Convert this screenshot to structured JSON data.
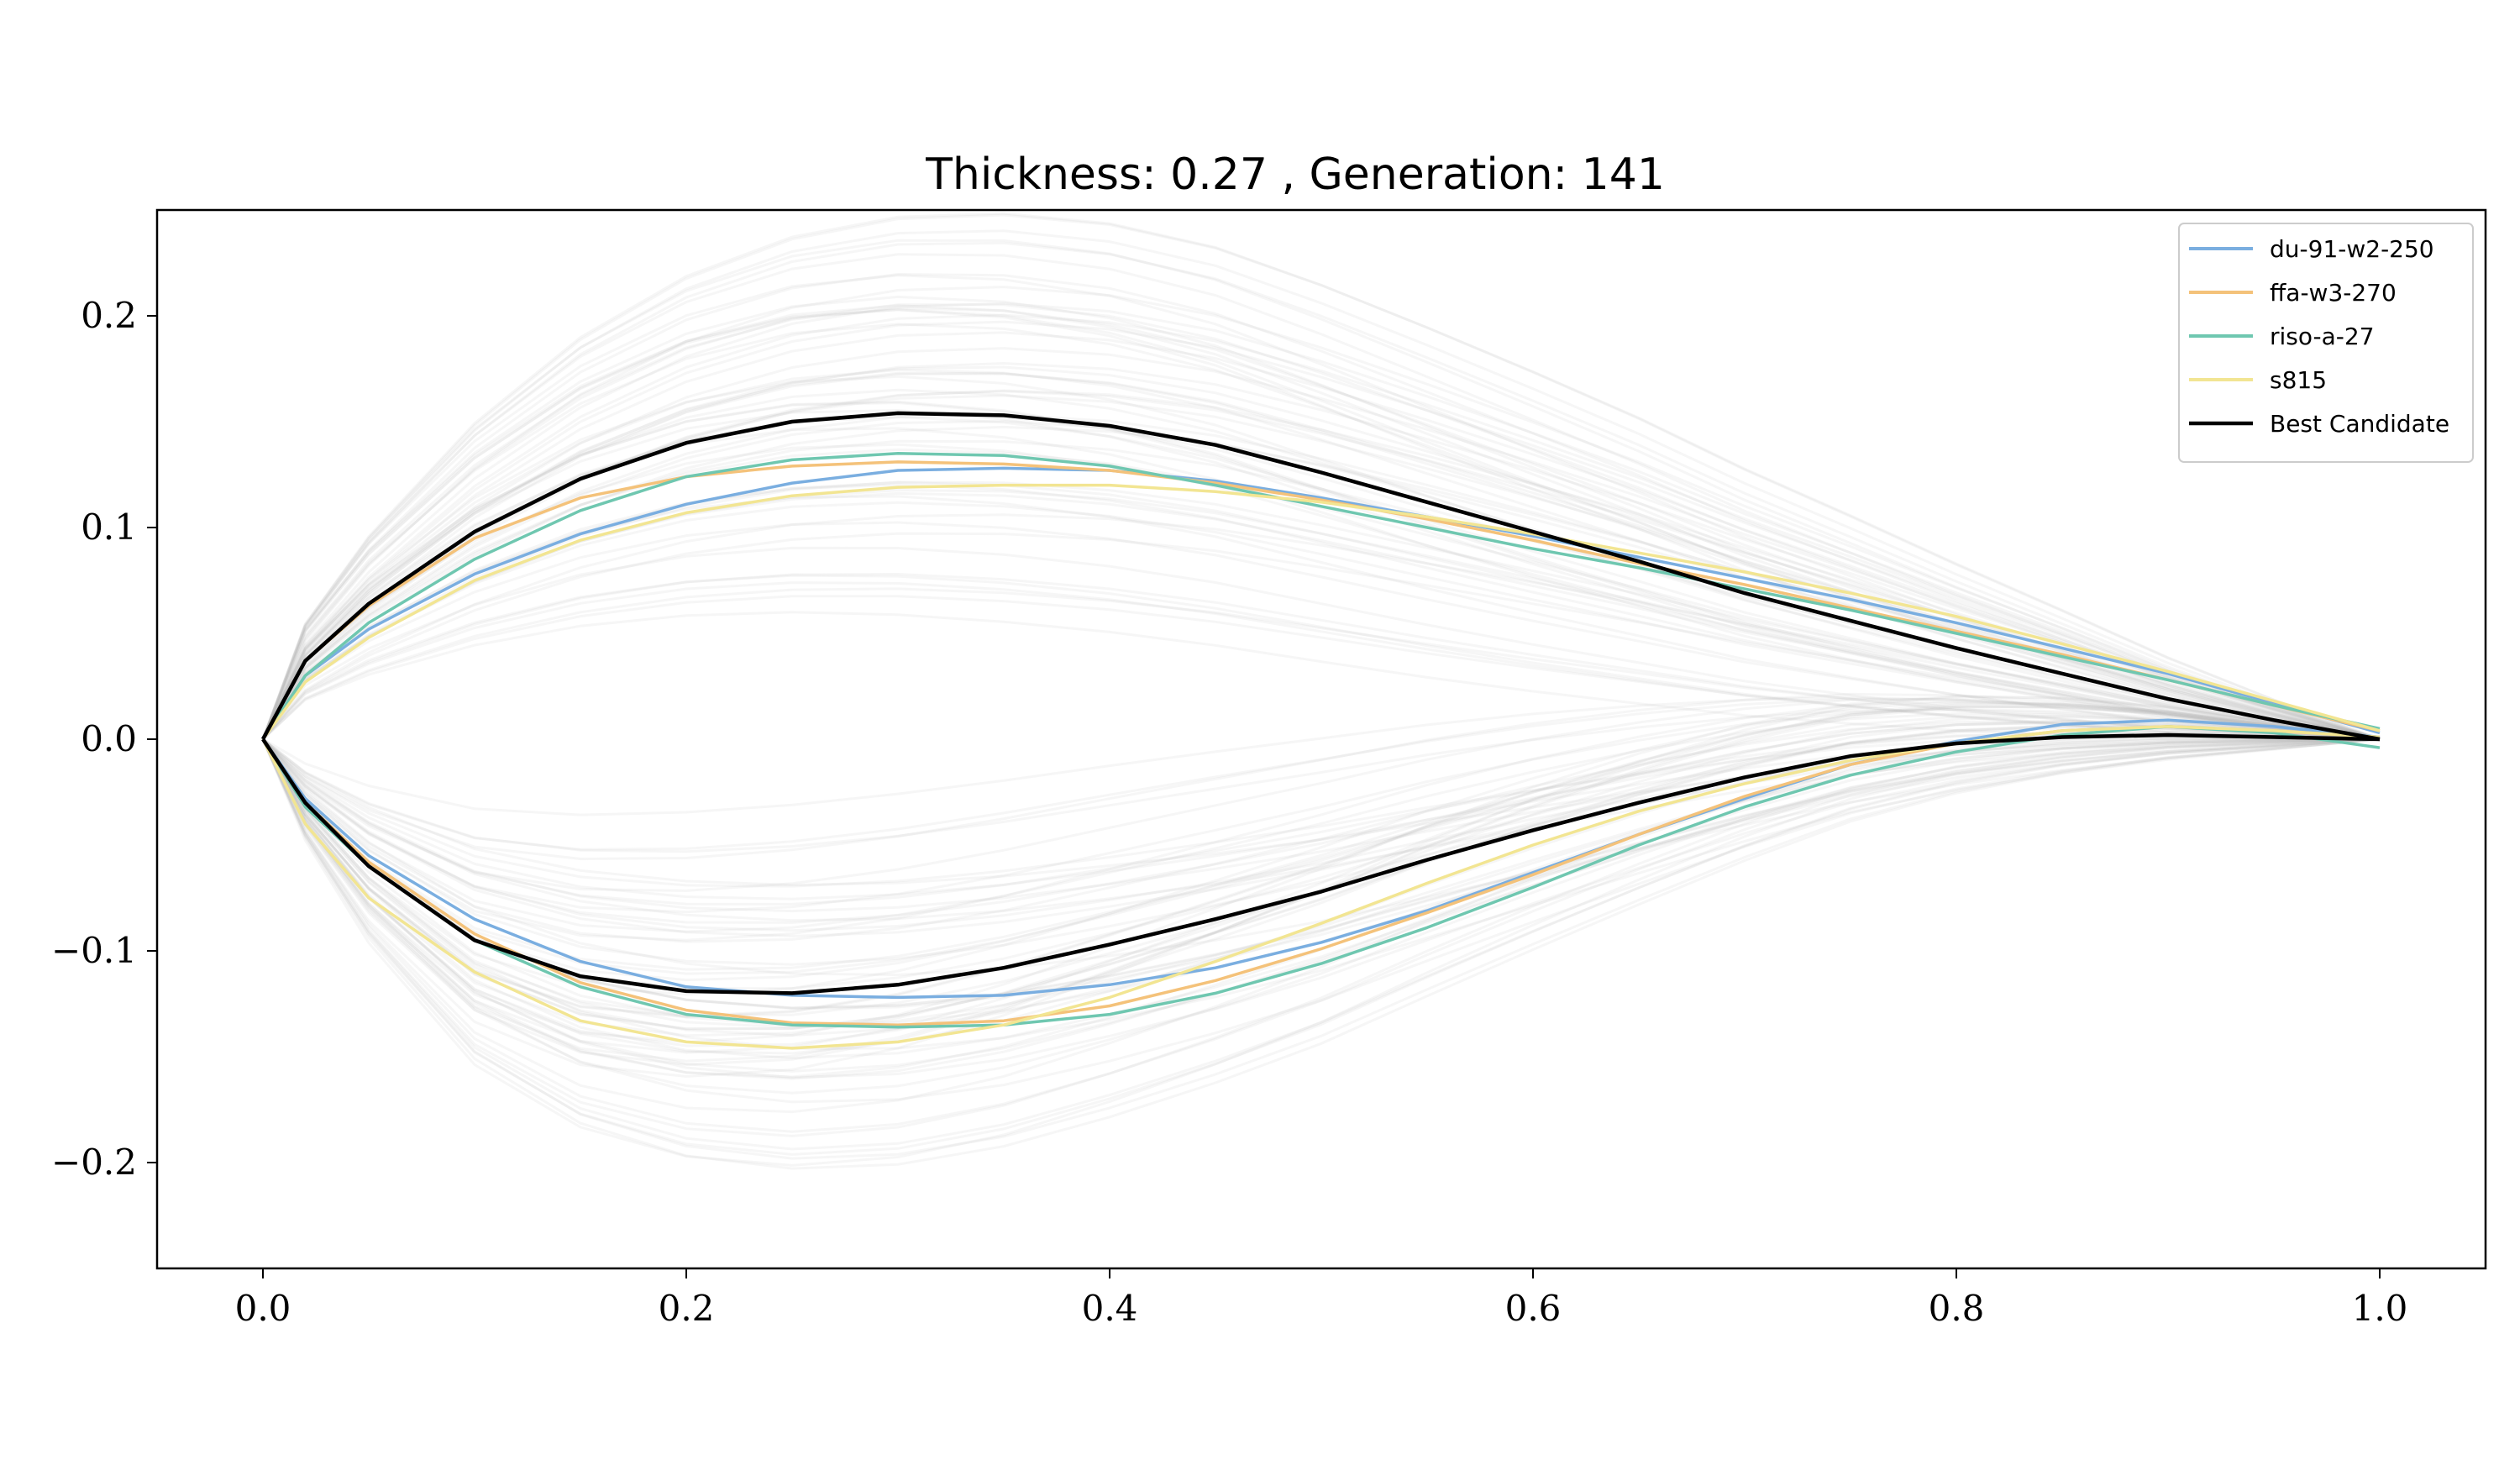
{
  "chart_data": {
    "type": "line",
    "title": "Thickness: 0.27 , Generation: 141",
    "xlabel": "",
    "ylabel": "",
    "xlim": [
      -0.05,
      1.05
    ],
    "ylim": [
      -0.25,
      0.25
    ],
    "xticks": [
      0.0,
      0.2,
      0.4,
      0.6,
      0.8,
      1.0
    ],
    "yticks": [
      -0.2,
      -0.1,
      0.0,
      0.1,
      0.2
    ],
    "xtick_labels": [
      "0.0",
      "0.2",
      "0.4",
      "0.6",
      "0.8",
      "1.0"
    ],
    "ytick_labels": [
      "−0.2",
      "−0.1",
      "0.0",
      "0.1",
      "0.2"
    ],
    "grid": false,
    "legend_position": "top-right",
    "series": [
      {
        "name": "du-91-w2-250",
        "color": "#7aaee0",
        "upper": [
          [
            0.0,
            0.0
          ],
          [
            0.02,
            0.03
          ],
          [
            0.05,
            0.052
          ],
          [
            0.1,
            0.078
          ],
          [
            0.15,
            0.097
          ],
          [
            0.2,
            0.111
          ],
          [
            0.25,
            0.121
          ],
          [
            0.3,
            0.127
          ],
          [
            0.35,
            0.128
          ],
          [
            0.4,
            0.127
          ],
          [
            0.45,
            0.122
          ],
          [
            0.5,
            0.114
          ],
          [
            0.55,
            0.105
          ],
          [
            0.6,
            0.096
          ],
          [
            0.65,
            0.086
          ],
          [
            0.7,
            0.076
          ],
          [
            0.75,
            0.066
          ],
          [
            0.8,
            0.055
          ],
          [
            0.85,
            0.043
          ],
          [
            0.9,
            0.031
          ],
          [
            0.95,
            0.017
          ],
          [
            1.0,
            0.003
          ]
        ],
        "lower": [
          [
            0.0,
            0.0
          ],
          [
            0.02,
            -0.028
          ],
          [
            0.05,
            -0.055
          ],
          [
            0.1,
            -0.085
          ],
          [
            0.15,
            -0.105
          ],
          [
            0.2,
            -0.117
          ],
          [
            0.25,
            -0.121
          ],
          [
            0.3,
            -0.122
          ],
          [
            0.35,
            -0.121
          ],
          [
            0.4,
            -0.116
          ],
          [
            0.45,
            -0.108
          ],
          [
            0.5,
            -0.096
          ],
          [
            0.55,
            -0.081
          ],
          [
            0.6,
            -0.063
          ],
          [
            0.65,
            -0.045
          ],
          [
            0.7,
            -0.028
          ],
          [
            0.75,
            -0.012
          ],
          [
            0.8,
            -0.001
          ],
          [
            0.85,
            0.007
          ],
          [
            0.9,
            0.009
          ],
          [
            0.95,
            0.006
          ],
          [
            1.0,
            0.001
          ]
        ]
      },
      {
        "name": "ffa-w3-270",
        "color": "#f4c27a",
        "upper": [
          [
            0.0,
            0.0
          ],
          [
            0.02,
            0.037
          ],
          [
            0.05,
            0.063
          ],
          [
            0.1,
            0.095
          ],
          [
            0.15,
            0.114
          ],
          [
            0.2,
            0.124
          ],
          [
            0.25,
            0.129
          ],
          [
            0.3,
            0.131
          ],
          [
            0.35,
            0.13
          ],
          [
            0.4,
            0.127
          ],
          [
            0.45,
            0.121
          ],
          [
            0.5,
            0.113
          ],
          [
            0.55,
            0.104
          ],
          [
            0.6,
            0.094
          ],
          [
            0.65,
            0.083
          ],
          [
            0.7,
            0.073
          ],
          [
            0.75,
            0.062
          ],
          [
            0.8,
            0.051
          ],
          [
            0.85,
            0.04
          ],
          [
            0.9,
            0.028
          ],
          [
            0.95,
            0.016
          ],
          [
            1.0,
            0.004
          ]
        ],
        "lower": [
          [
            0.0,
            0.0
          ],
          [
            0.02,
            -0.03
          ],
          [
            0.05,
            -0.058
          ],
          [
            0.1,
            -0.092
          ],
          [
            0.15,
            -0.115
          ],
          [
            0.2,
            -0.128
          ],
          [
            0.25,
            -0.134
          ],
          [
            0.3,
            -0.135
          ],
          [
            0.35,
            -0.133
          ],
          [
            0.4,
            -0.126
          ],
          [
            0.45,
            -0.114
          ],
          [
            0.5,
            -0.099
          ],
          [
            0.55,
            -0.082
          ],
          [
            0.6,
            -0.064
          ],
          [
            0.65,
            -0.045
          ],
          [
            0.7,
            -0.027
          ],
          [
            0.75,
            -0.012
          ],
          [
            0.8,
            -0.002
          ],
          [
            0.85,
            0.004
          ],
          [
            0.9,
            0.006
          ],
          [
            0.95,
            0.004
          ],
          [
            1.0,
            0.001
          ]
        ]
      },
      {
        "name": "riso-a-27",
        "color": "#6fc7b0",
        "upper": [
          [
            0.0,
            0.0
          ],
          [
            0.02,
            0.03
          ],
          [
            0.05,
            0.055
          ],
          [
            0.1,
            0.085
          ],
          [
            0.15,
            0.108
          ],
          [
            0.2,
            0.124
          ],
          [
            0.25,
            0.132
          ],
          [
            0.3,
            0.135
          ],
          [
            0.35,
            0.134
          ],
          [
            0.4,
            0.129
          ],
          [
            0.45,
            0.12
          ],
          [
            0.5,
            0.11
          ],
          [
            0.55,
            0.1
          ],
          [
            0.6,
            0.09
          ],
          [
            0.65,
            0.081
          ],
          [
            0.7,
            0.071
          ],
          [
            0.75,
            0.061
          ],
          [
            0.8,
            0.05
          ],
          [
            0.85,
            0.039
          ],
          [
            0.9,
            0.028
          ],
          [
            0.95,
            0.016
          ],
          [
            1.0,
            0.005
          ]
        ],
        "lower": [
          [
            0.0,
            0.0
          ],
          [
            0.02,
            -0.032
          ],
          [
            0.05,
            -0.06
          ],
          [
            0.1,
            -0.095
          ],
          [
            0.15,
            -0.117
          ],
          [
            0.2,
            -0.13
          ],
          [
            0.25,
            -0.135
          ],
          [
            0.3,
            -0.136
          ],
          [
            0.35,
            -0.135
          ],
          [
            0.4,
            -0.13
          ],
          [
            0.45,
            -0.12
          ],
          [
            0.5,
            -0.106
          ],
          [
            0.55,
            -0.089
          ],
          [
            0.6,
            -0.07
          ],
          [
            0.65,
            -0.05
          ],
          [
            0.7,
            -0.032
          ],
          [
            0.75,
            -0.017
          ],
          [
            0.8,
            -0.006
          ],
          [
            0.85,
            0.002
          ],
          [
            0.9,
            0.006
          ],
          [
            0.95,
            0.003
          ],
          [
            1.0,
            -0.004
          ]
        ]
      },
      {
        "name": "s815",
        "color": "#f2e592",
        "upper": [
          [
            0.0,
            0.0
          ],
          [
            0.02,
            0.027
          ],
          [
            0.05,
            0.048
          ],
          [
            0.1,
            0.075
          ],
          [
            0.15,
            0.094
          ],
          [
            0.2,
            0.107
          ],
          [
            0.25,
            0.115
          ],
          [
            0.3,
            0.119
          ],
          [
            0.35,
            0.12
          ],
          [
            0.4,
            0.12
          ],
          [
            0.45,
            0.117
          ],
          [
            0.5,
            0.112
          ],
          [
            0.55,
            0.105
          ],
          [
            0.6,
            0.097
          ],
          [
            0.65,
            0.088
          ],
          [
            0.7,
            0.079
          ],
          [
            0.75,
            0.069
          ],
          [
            0.8,
            0.058
          ],
          [
            0.85,
            0.045
          ],
          [
            0.9,
            0.032
          ],
          [
            0.95,
            0.018
          ],
          [
            1.0,
            0.004
          ]
        ],
        "lower": [
          [
            0.0,
            0.0
          ],
          [
            0.02,
            -0.04
          ],
          [
            0.05,
            -0.075
          ],
          [
            0.1,
            -0.11
          ],
          [
            0.15,
            -0.133
          ],
          [
            0.2,
            -0.143
          ],
          [
            0.25,
            -0.146
          ],
          [
            0.3,
            -0.143
          ],
          [
            0.35,
            -0.135
          ],
          [
            0.4,
            -0.122
          ],
          [
            0.45,
            -0.105
          ],
          [
            0.5,
            -0.087
          ],
          [
            0.55,
            -0.068
          ],
          [
            0.6,
            -0.05
          ],
          [
            0.65,
            -0.034
          ],
          [
            0.7,
            -0.021
          ],
          [
            0.75,
            -0.01
          ],
          [
            0.8,
            -0.002
          ],
          [
            0.85,
            0.004
          ],
          [
            0.9,
            0.006
          ],
          [
            0.95,
            0.004
          ],
          [
            1.0,
            0.001
          ]
        ]
      },
      {
        "name": "Best Candidate",
        "color": "#000000",
        "upper": [
          [
            0.0,
            0.0
          ],
          [
            0.02,
            0.037
          ],
          [
            0.05,
            0.064
          ],
          [
            0.1,
            0.098
          ],
          [
            0.15,
            0.123
          ],
          [
            0.2,
            0.14
          ],
          [
            0.25,
            0.15
          ],
          [
            0.3,
            0.154
          ],
          [
            0.35,
            0.153
          ],
          [
            0.4,
            0.148
          ],
          [
            0.45,
            0.139
          ],
          [
            0.5,
            0.126
          ],
          [
            0.55,
            0.112
          ],
          [
            0.6,
            0.098
          ],
          [
            0.65,
            0.084
          ],
          [
            0.7,
            0.069
          ],
          [
            0.75,
            0.056
          ],
          [
            0.8,
            0.043
          ],
          [
            0.85,
            0.031
          ],
          [
            0.9,
            0.019
          ],
          [
            0.95,
            0.009
          ],
          [
            1.0,
            0.0
          ]
        ],
        "lower": [
          [
            0.0,
            0.0
          ],
          [
            0.02,
            -0.03
          ],
          [
            0.05,
            -0.06
          ],
          [
            0.1,
            -0.095
          ],
          [
            0.15,
            -0.112
          ],
          [
            0.2,
            -0.119
          ],
          [
            0.25,
            -0.12
          ],
          [
            0.3,
            -0.116
          ],
          [
            0.35,
            -0.108
          ],
          [
            0.4,
            -0.097
          ],
          [
            0.45,
            -0.085
          ],
          [
            0.5,
            -0.072
          ],
          [
            0.55,
            -0.057
          ],
          [
            0.6,
            -0.043
          ],
          [
            0.65,
            -0.03
          ],
          [
            0.7,
            -0.018
          ],
          [
            0.75,
            -0.008
          ],
          [
            0.8,
            -0.002
          ],
          [
            0.85,
            0.001
          ],
          [
            0.9,
            0.002
          ],
          [
            0.95,
            0.001
          ],
          [
            1.0,
            0.0
          ]
        ]
      }
    ],
    "background_population": {
      "color": "#b5b5b5",
      "description_count": 60
    }
  }
}
